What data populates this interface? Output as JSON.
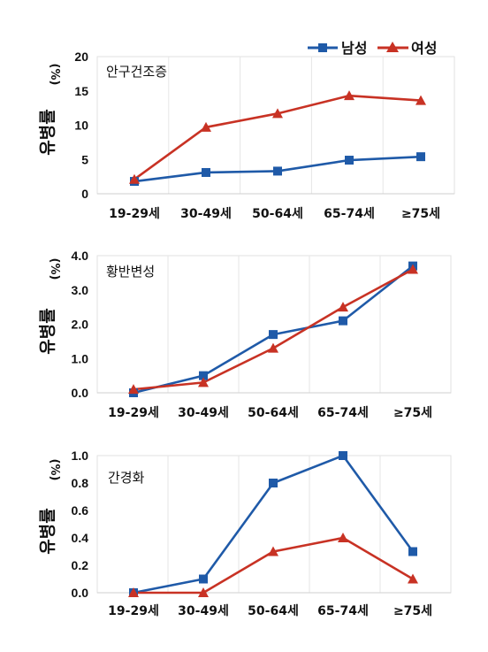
{
  "legend": {
    "male_label": "남성",
    "female_label": "여성",
    "male_color": "#1f5aa8",
    "female_color": "#c83224"
  },
  "chart_data": [
    {
      "type": "line",
      "title": "안구건조증",
      "ylabel": "유병률",
      "yunit": "(%)",
      "categories": [
        "19-29세",
        "30-49세",
        "50-64세",
        "65-74세",
        "≥75세"
      ],
      "ylim": [
        0,
        20
      ],
      "yticks": [
        "0",
        "5",
        "10",
        "15",
        "20"
      ],
      "yticks_values": [
        0,
        5,
        10,
        15,
        20
      ],
      "series": [
        {
          "name": "남성",
          "marker": "square",
          "color": "#1f5aa8",
          "values": [
            1.8,
            3.1,
            3.3,
            4.9,
            5.4
          ]
        },
        {
          "name": "여성",
          "marker": "triangle",
          "color": "#c83224",
          "values": [
            2.1,
            9.7,
            11.7,
            14.3,
            13.6
          ]
        }
      ]
    },
    {
      "type": "line",
      "title": "황반변성",
      "ylabel": "유병률",
      "yunit": "(%)",
      "categories": [
        "19-29세",
        "30-49세",
        "50-64세",
        "65-74세",
        "≥75세"
      ],
      "ylim": [
        0,
        4
      ],
      "yticks": [
        "0.0",
        "1.0",
        "2.0",
        "3.0",
        "4.0"
      ],
      "yticks_values": [
        0,
        1,
        2,
        3,
        4
      ],
      "series": [
        {
          "name": "남성",
          "marker": "square",
          "color": "#1f5aa8",
          "values": [
            0.0,
            0.5,
            1.7,
            2.1,
            3.7
          ]
        },
        {
          "name": "여성",
          "marker": "triangle",
          "color": "#c83224",
          "values": [
            0.1,
            0.3,
            1.3,
            2.5,
            3.6
          ]
        }
      ]
    },
    {
      "type": "line",
      "title": "간경화",
      "ylabel": "유병률",
      "yunit": "(%)",
      "categories": [
        "19-29세",
        "30-49세",
        "50-64세",
        "65-74세",
        "≥75세"
      ],
      "ylim": [
        0,
        1
      ],
      "yticks": [
        "0.0",
        "0.2",
        "0.4",
        "0.6",
        "0.8",
        "1.0"
      ],
      "yticks_values": [
        0,
        0.2,
        0.4,
        0.6,
        0.8,
        1.0
      ],
      "series": [
        {
          "name": "남성",
          "marker": "square",
          "color": "#1f5aa8",
          "values": [
            0.0,
            0.1,
            0.8,
            1.0,
            0.3
          ]
        },
        {
          "name": "여성",
          "marker": "triangle",
          "color": "#c83224",
          "values": [
            0.0,
            0.0,
            0.3,
            0.4,
            0.1
          ]
        }
      ]
    }
  ]
}
